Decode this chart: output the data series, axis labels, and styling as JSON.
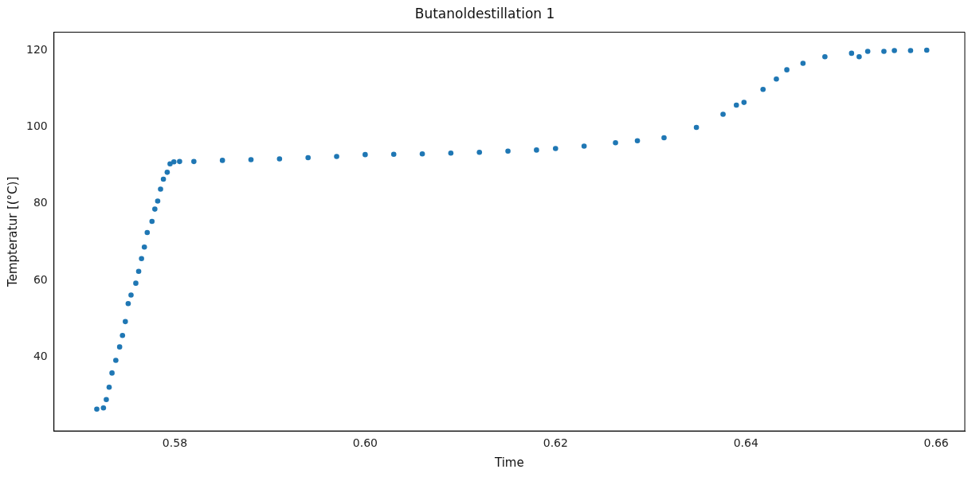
{
  "chart_data": {
    "type": "scatter",
    "title": "Butanoldestillation 1",
    "xlabel": "Time",
    "ylabel": "Tempteratur [(°C)]",
    "x": [
      0.5718,
      0.5725,
      0.5728,
      0.5731,
      0.5734,
      0.5738,
      0.5742,
      0.5745,
      0.5748,
      0.5751,
      0.5754,
      0.5759,
      0.5762,
      0.5765,
      0.5768,
      0.5771,
      0.5776,
      0.5779,
      0.5782,
      0.5785,
      0.5788,
      0.5792,
      0.5795,
      0.5799,
      0.5805,
      0.582,
      0.585,
      0.588,
      0.591,
      0.594,
      0.597,
      0.6,
      0.603,
      0.606,
      0.609,
      0.612,
      0.615,
      0.618,
      0.62,
      0.623,
      0.6263,
      0.6286,
      0.6314,
      0.6348,
      0.6376,
      0.639,
      0.6398,
      0.6418,
      0.6432,
      0.6443,
      0.646,
      0.6483,
      0.6511,
      0.6519,
      0.6528,
      0.6545,
      0.6556,
      0.6573,
      0.659
    ],
    "series": [
      {
        "color": "#1f77b4",
        "values": [
          26.5,
          26.8,
          29.0,
          32.2,
          35.9,
          39.2,
          42.7,
          45.7,
          49.3,
          54.0,
          56.2,
          59.3,
          62.4,
          65.7,
          68.7,
          72.5,
          75.4,
          78.6,
          80.7,
          83.8,
          86.4,
          88.2,
          90.4,
          90.9,
          91.0,
          91.0,
          91.3,
          91.5,
          91.7,
          92.0,
          92.3,
          92.8,
          92.9,
          93.0,
          93.2,
          93.4,
          93.7,
          94.0,
          94.4,
          95.0,
          95.9,
          96.4,
          97.2,
          99.9,
          103.3,
          105.7,
          106.4,
          109.8,
          112.5,
          114.9,
          116.6,
          118.3,
          119.2,
          118.3,
          119.7,
          119.7,
          119.9,
          119.9,
          120.0
        ]
      }
    ],
    "xlim": [
      0.5673,
      0.663
    ],
    "xticks": [
      {
        "value": 0.58,
        "label": "0.58"
      },
      {
        "value": 0.6,
        "label": "0.60"
      },
      {
        "value": 0.62,
        "label": "0.62"
      },
      {
        "value": 0.64,
        "label": "0.64"
      },
      {
        "value": 0.66,
        "label": "0.66"
      }
    ],
    "ylim": [
      20.8,
      124.7
    ],
    "yticks": [
      40,
      60,
      80,
      100,
      120
    ],
    "marker": "circle",
    "grid": false,
    "legend": false
  }
}
